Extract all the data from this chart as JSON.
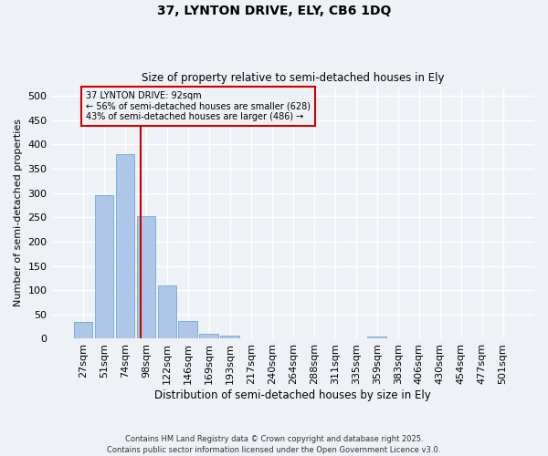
{
  "title_line1": "37, LYNTON DRIVE, ELY, CB6 1DQ",
  "title_line2": "Size of property relative to semi-detached houses in Ely",
  "xlabel": "Distribution of semi-detached houses by size in Ely",
  "ylabel": "Number of semi-detached properties",
  "footnote": "Contains HM Land Registry data © Crown copyright and database right 2025.\nContains public sector information licensed under the Open Government Licence v3.0.",
  "bar_labels": [
    "27sqm",
    "51sqm",
    "74sqm",
    "98sqm",
    "122sqm",
    "146sqm",
    "169sqm",
    "193sqm",
    "217sqm",
    "240sqm",
    "264sqm",
    "288sqm",
    "311sqm",
    "335sqm",
    "359sqm",
    "383sqm",
    "406sqm",
    "430sqm",
    "454sqm",
    "477sqm",
    "501sqm"
  ],
  "bar_values": [
    35,
    295,
    380,
    253,
    110,
    37,
    10,
    6,
    0,
    0,
    0,
    0,
    0,
    0,
    4,
    0,
    0,
    0,
    0,
    0,
    0
  ],
  "bar_color": "#aec6e8",
  "bar_edge_color": "#5a9fd4",
  "property_label": "37 LYNTON DRIVE: 92sqm",
  "pct_smaller": 56,
  "count_smaller": 628,
  "pct_larger": 43,
  "count_larger": 486,
  "vline_color": "#cc0000",
  "ylim": [
    0,
    520
  ],
  "yticks": [
    0,
    50,
    100,
    150,
    200,
    250,
    300,
    350,
    400,
    450,
    500
  ],
  "bg_color": "#eef2f7",
  "grid_color": "#ffffff"
}
